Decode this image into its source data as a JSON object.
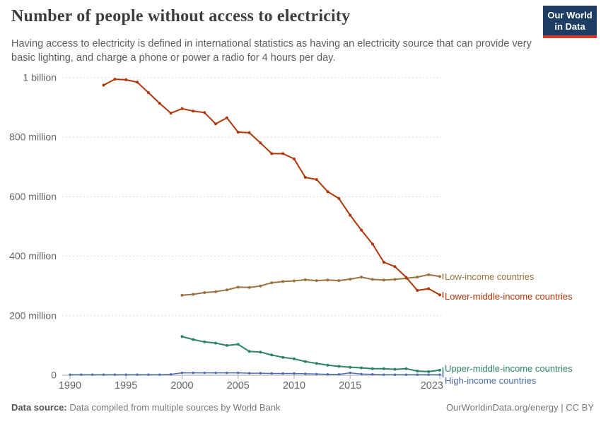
{
  "header": {
    "title": "Number of people without access to electricity",
    "subtitle": "Having access to electricity is defined in international statistics as having an electricity source that can provide very basic lighting, and charge a phone or power a radio for 4 hours per day.",
    "logo": {
      "line1": "Our World",
      "line2": "in Data",
      "bg_color": "#1d3d63",
      "accent_color": "#d6382f"
    }
  },
  "chart_data": {
    "type": "line",
    "title": "Number of people without access to electricity",
    "x_range": [
      1990,
      2023
    ],
    "y_range_millions": [
      0,
      1000
    ],
    "grid": "horizontal-dashed",
    "legend_position": "labels-at-line-ends",
    "x_ticks": [
      1990,
      1995,
      2000,
      2005,
      2010,
      2015,
      2023
    ],
    "y_ticks": [
      {
        "value_millions": 0,
        "label": "0"
      },
      {
        "value_millions": 200,
        "label": "200 million"
      },
      {
        "value_millions": 400,
        "label": "400 million"
      },
      {
        "value_millions": 600,
        "label": "600 million"
      },
      {
        "value_millions": 800,
        "label": "800 million"
      },
      {
        "value_millions": 1000,
        "label": "1 billion"
      }
    ],
    "axis_color": "#a5a5a5",
    "gridline_color": "#dcdcdc",
    "tick_label_color": "#666666",
    "series": [
      {
        "id": "low-income",
        "name": "Low-income countries",
        "color": "#9c7340",
        "start_year": 2000,
        "values_millions": [
          269,
          272,
          278,
          281,
          287,
          296,
          295,
          300,
          311,
          315,
          317,
          321,
          318,
          320,
          318,
          323,
          330,
          322,
          320,
          322,
          326,
          330,
          338,
          332
        ]
      },
      {
        "id": "lower-middle-income",
        "name": "Lower-middle-income countries",
        "color": "#b13507",
        "start_year": 1993,
        "values_millions": [
          975,
          995,
          993,
          985,
          950,
          914,
          881,
          896,
          888,
          883,
          845,
          865,
          817,
          815,
          781,
          745,
          745,
          727,
          665,
          658,
          617,
          594,
          538,
          488,
          441,
          380,
          365,
          329,
          285,
          291,
          270
        ]
      },
      {
        "id": "upper-middle-income",
        "name": "Upper-middle-income countries",
        "color": "#2c8465",
        "start_year": 2000,
        "values_millions": [
          130,
          120,
          112,
          108,
          100,
          104,
          80,
          78,
          68,
          60,
          55,
          46,
          40,
          34,
          30,
          27,
          25,
          22,
          22,
          20,
          22,
          14,
          12,
          17
        ]
      },
      {
        "id": "high-income",
        "name": "High-income countries",
        "color": "#4d6eae",
        "start_year": 1990,
        "values_millions": [
          2,
          2,
          2,
          2,
          2,
          2,
          2,
          2,
          2,
          3,
          8,
          8,
          8,
          8,
          8,
          8,
          7,
          7,
          6,
          6,
          6,
          5,
          4,
          3,
          3,
          8,
          4,
          3,
          2,
          2,
          2,
          2,
          2,
          2
        ]
      }
    ]
  },
  "footer": {
    "datasource_label": "Data source:",
    "datasource_text": "Data compiled from multiple sources by World Bank",
    "credit": "OurWorldinData.org/energy | CC BY"
  }
}
